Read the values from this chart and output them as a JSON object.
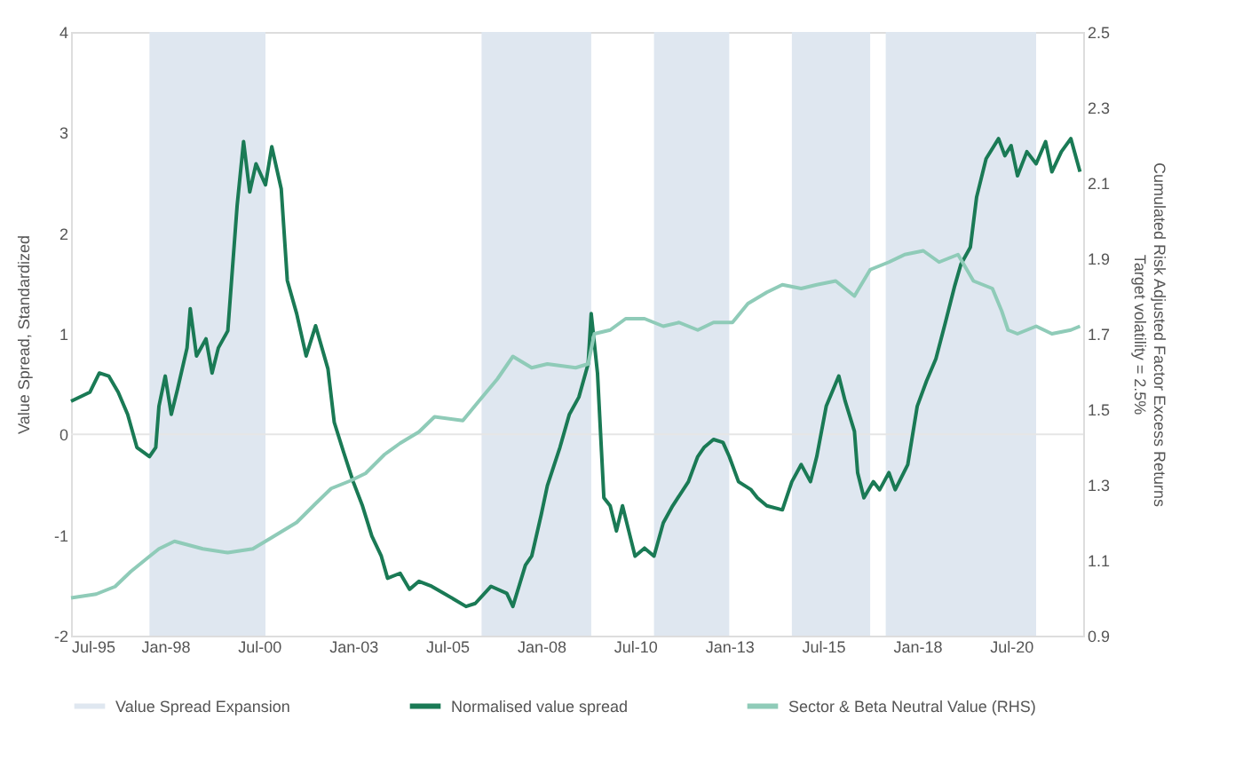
{
  "chart_data": {
    "type": "line",
    "ylabel": "Value Spread, Standardized",
    "y2label": "Cumulated Risk Adjusted Factor Excess Returns\nTarget volatility = 2.5%",
    "xlim": [
      "1995-07",
      "2022-06"
    ],
    "xticks": [
      {
        "value": "1995-07",
        "label": "Jul-95"
      },
      {
        "value": "1998-01",
        "label": "Jan-98"
      },
      {
        "value": "2000-07",
        "label": "Jul-00"
      },
      {
        "value": "2003-01",
        "label": "Jan-03"
      },
      {
        "value": "2005-07",
        "label": "Jul-05"
      },
      {
        "value": "2008-01",
        "label": "Jan-08"
      },
      {
        "value": "2010-07",
        "label": "Jul-10"
      },
      {
        "value": "2013-01",
        "label": "Jan-13"
      },
      {
        "value": "2015-07",
        "label": "Jul-15"
      },
      {
        "value": "2018-01",
        "label": "Jan-18"
      },
      {
        "value": "2020-07",
        "label": "Jul-20"
      }
    ],
    "ylim": [
      -2,
      4
    ],
    "yticks": [
      -2,
      -1,
      0,
      1,
      2,
      3,
      4
    ],
    "y2lim": [
      0.9,
      2.5
    ],
    "y2ticks": [
      0.9,
      1.1,
      1.3,
      1.5,
      1.7,
      1.9,
      2.1,
      2.3,
      2.5
    ],
    "grid": false,
    "legend": "bottom",
    "line_style": "solid",
    "marker": "none",
    "ref_lines": [
      {
        "axis": "y",
        "value": 0,
        "color": "#e6e6e6"
      }
    ],
    "bands": [
      {
        "axis": "x",
        "from": "1997-08",
        "to": "2000-09",
        "label": "Value Spread Expansion",
        "color": "#dfe7f0"
      },
      {
        "axis": "x",
        "from": "2006-06",
        "to": "2009-05",
        "color": "#dfe7f0"
      },
      {
        "axis": "x",
        "from": "2011-01",
        "to": "2013-01",
        "color": "#dfe7f0"
      },
      {
        "axis": "x",
        "from": "2014-09",
        "to": "2016-10",
        "color": "#dfe7f0"
      },
      {
        "axis": "x",
        "from": "2017-03",
        "to": "2021-03",
        "color": "#dfe7f0"
      }
    ],
    "series": [
      {
        "name": "Normalised value spread",
        "color": "#1a7a55",
        "x": [
          "1995-07",
          "1996-01",
          "1996-04",
          "1996-07",
          "1996-10",
          "1997-01",
          "1997-04",
          "1997-08",
          "1997-10",
          "1997-11",
          "1998-01",
          "1998-03",
          "1998-05",
          "1998-08",
          "1998-09",
          "1998-11",
          "1999-02",
          "1999-04",
          "1999-06",
          "1999-09",
          "1999-12",
          "2000-02",
          "2000-04",
          "2000-06",
          "2000-09",
          "2000-11",
          "2001-02",
          "2001-04",
          "2001-07",
          "2001-10",
          "2002-01",
          "2002-05",
          "2002-07",
          "2002-10",
          "2003-01",
          "2003-04",
          "2003-07",
          "2003-10",
          "2003-12",
          "2004-04",
          "2004-07",
          "2004-10",
          "2005-02",
          "2005-06",
          "2006-01",
          "2006-04",
          "2006-09",
          "2007-02",
          "2007-04",
          "2007-08",
          "2007-10",
          "2008-01",
          "2008-03",
          "2008-07",
          "2008-10",
          "2009-01",
          "2009-04",
          "2009-05",
          "2009-07",
          "2009-09",
          "2009-11",
          "2010-01",
          "2010-03",
          "2010-05",
          "2010-07",
          "2010-10",
          "2011-01",
          "2011-04",
          "2011-07",
          "2011-12",
          "2012-03",
          "2012-05",
          "2012-08",
          "2012-11",
          "2013-01",
          "2013-04",
          "2013-08",
          "2013-10",
          "2014-01",
          "2014-06",
          "2014-09",
          "2014-12",
          "2015-03",
          "2015-05",
          "2015-08",
          "2015-12",
          "2016-02",
          "2016-05",
          "2016-06",
          "2016-08",
          "2016-11",
          "2017-01",
          "2017-04",
          "2017-06",
          "2017-10",
          "2018-01",
          "2018-04",
          "2018-07",
          "2018-10",
          "2019-01",
          "2019-03",
          "2019-06",
          "2019-08",
          "2019-11",
          "2020-03",
          "2020-05",
          "2020-07",
          "2020-09",
          "2020-12",
          "2021-03",
          "2021-06",
          "2021-08",
          "2021-11",
          "2022-02",
          "2022-05"
        ],
        "values": [
          0.33,
          0.42,
          0.61,
          0.58,
          0.42,
          0.2,
          -0.13,
          -0.22,
          -0.13,
          0.28,
          0.58,
          0.2,
          0.45,
          0.86,
          1.25,
          0.78,
          0.95,
          0.61,
          0.86,
          1.03,
          2.28,
          2.91,
          2.41,
          2.69,
          2.48,
          2.86,
          2.44,
          1.53,
          1.2,
          0.78,
          1.08,
          0.65,
          0.12,
          -0.18,
          -0.47,
          -0.71,
          -1.01,
          -1.21,
          -1.43,
          -1.38,
          -1.54,
          -1.46,
          -1.51,
          -1.58,
          -1.71,
          -1.68,
          -1.51,
          -1.58,
          -1.71,
          -1.3,
          -1.21,
          -0.8,
          -0.51,
          -0.13,
          0.2,
          0.37,
          0.7,
          1.2,
          0.61,
          -0.63,
          -0.71,
          -0.96,
          -0.71,
          -0.96,
          -1.21,
          -1.13,
          -1.21,
          -0.88,
          -0.71,
          -0.47,
          -0.22,
          -0.13,
          -0.05,
          -0.08,
          -0.22,
          -0.47,
          -0.55,
          -0.63,
          -0.71,
          -0.75,
          -0.47,
          -0.3,
          -0.47,
          -0.22,
          0.28,
          0.58,
          0.33,
          0.03,
          -0.38,
          -0.63,
          -0.47,
          -0.55,
          -0.38,
          -0.55,
          -0.3,
          0.28,
          0.53,
          0.75,
          1.11,
          1.48,
          1.69,
          1.86,
          2.36,
          2.74,
          2.94,
          2.77,
          2.87,
          2.57,
          2.81,
          2.69,
          2.91,
          2.61,
          2.81,
          2.94,
          2.61
        ]
      },
      {
        "name": "Sector & Beta Neutral Value (RHS)",
        "color": "#8fcbb8",
        "axis": "y2",
        "x": [
          "1995-07",
          "1996-03",
          "1996-09",
          "1997-02",
          "1997-08",
          "1997-11",
          "1998-04",
          "1999-01",
          "1999-09",
          "2000-05",
          "2000-11",
          "2001-07",
          "2002-01",
          "2002-06",
          "2002-12",
          "2003-05",
          "2003-11",
          "2004-04",
          "2004-10",
          "2005-03",
          "2005-12",
          "2006-05",
          "2006-11",
          "2007-04",
          "2007-10",
          "2008-03",
          "2008-12",
          "2009-04",
          "2009-06",
          "2009-11",
          "2010-04",
          "2010-10",
          "2011-04",
          "2011-09",
          "2012-03",
          "2012-08",
          "2013-02",
          "2013-07",
          "2014-01",
          "2014-06",
          "2014-12",
          "2015-05",
          "2015-11",
          "2016-05",
          "2016-10",
          "2017-04",
          "2017-09",
          "2018-03",
          "2018-08",
          "2019-02",
          "2019-07",
          "2020-01",
          "2020-04",
          "2020-06",
          "2020-09",
          "2021-03",
          "2021-08",
          "2022-02",
          "2022-05"
        ],
        "values": [
          1.0,
          1.01,
          1.03,
          1.07,
          1.11,
          1.13,
          1.15,
          1.13,
          1.12,
          1.13,
          1.16,
          1.2,
          1.25,
          1.29,
          1.31,
          1.33,
          1.38,
          1.41,
          1.44,
          1.48,
          1.47,
          1.52,
          1.58,
          1.64,
          1.61,
          1.62,
          1.61,
          1.62,
          1.7,
          1.71,
          1.74,
          1.74,
          1.72,
          1.73,
          1.71,
          1.73,
          1.73,
          1.78,
          1.81,
          1.83,
          1.82,
          1.83,
          1.84,
          1.8,
          1.87,
          1.89,
          1.91,
          1.92,
          1.89,
          1.91,
          1.84,
          1.82,
          1.76,
          1.71,
          1.7,
          1.72,
          1.7,
          1.71,
          1.72
        ]
      }
    ]
  }
}
